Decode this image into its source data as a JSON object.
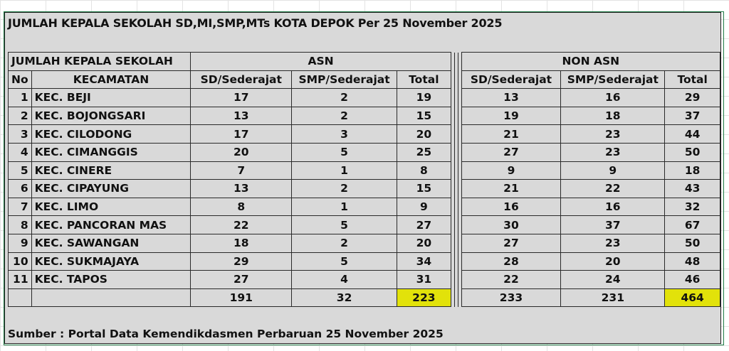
{
  "title": "JUMLAH KEPALA SEKOLAH SD,MI,SMP,MTs KOTA DEPOK Per 25 November 2025",
  "header": {
    "group_label": "JUMLAH KEPALA SEKOLAH",
    "asn_label": "ASN",
    "non_asn_label": "NON ASN",
    "no_label": "No",
    "kecamatan_label": "KECAMATAN",
    "sd_label": "SD/Sederajat",
    "smp_label": "SMP/Sederajat",
    "total_label": "Total"
  },
  "rows": [
    {
      "no": "1",
      "kecamatan": "KEC. BEJI",
      "asn_sd": "17",
      "asn_smp": "2",
      "asn_total": "19",
      "non_sd": "13",
      "non_smp": "16",
      "non_total": "29"
    },
    {
      "no": "2",
      "kecamatan": "KEC. BOJONGSARI",
      "asn_sd": "13",
      "asn_smp": "2",
      "asn_total": "15",
      "non_sd": "19",
      "non_smp": "18",
      "non_total": "37"
    },
    {
      "no": "3",
      "kecamatan": "KEC. CILODONG",
      "asn_sd": "17",
      "asn_smp": "3",
      "asn_total": "20",
      "non_sd": "21",
      "non_smp": "23",
      "non_total": "44"
    },
    {
      "no": "4",
      "kecamatan": "KEC. CIMANGGIS",
      "asn_sd": "20",
      "asn_smp": "5",
      "asn_total": "25",
      "non_sd": "27",
      "non_smp": "23",
      "non_total": "50"
    },
    {
      "no": "5",
      "kecamatan": "KEC. CINERE",
      "asn_sd": "7",
      "asn_smp": "1",
      "asn_total": "8",
      "non_sd": "9",
      "non_smp": "9",
      "non_total": "18"
    },
    {
      "no": "6",
      "kecamatan": "KEC. CIPAYUNG",
      "asn_sd": "13",
      "asn_smp": "2",
      "asn_total": "15",
      "non_sd": "21",
      "non_smp": "22",
      "non_total": "43"
    },
    {
      "no": "7",
      "kecamatan": "KEC. LIMO",
      "asn_sd": "8",
      "asn_smp": "1",
      "asn_total": "9",
      "non_sd": "16",
      "non_smp": "16",
      "non_total": "32"
    },
    {
      "no": "8",
      "kecamatan": "KEC. PANCORAN MAS",
      "asn_sd": "22",
      "asn_smp": "5",
      "asn_total": "27",
      "non_sd": "30",
      "non_smp": "37",
      "non_total": "67"
    },
    {
      "no": "9",
      "kecamatan": "KEC. SAWANGAN",
      "asn_sd": "18",
      "asn_smp": "2",
      "asn_total": "20",
      "non_sd": "27",
      "non_smp": "23",
      "non_total": "50"
    },
    {
      "no": "10",
      "kecamatan": "KEC. SUKMAJAYA",
      "asn_sd": "29",
      "asn_smp": "5",
      "asn_total": "34",
      "non_sd": "28",
      "non_smp": "20",
      "non_total": "48"
    },
    {
      "no": "11",
      "kecamatan": "KEC. TAPOS",
      "asn_sd": "27",
      "asn_smp": "4",
      "asn_total": "31",
      "non_sd": "22",
      "non_smp": "24",
      "non_total": "46"
    }
  ],
  "totals": {
    "asn_sd": "191",
    "asn_smp": "32",
    "asn_total": "223",
    "non_sd": "233",
    "non_smp": "231",
    "non_total": "464"
  },
  "source": "Sumber : Portal Data Kemendikdasmen Perbaruan 25 November 2025",
  "colors": {
    "sheet_bg": "#d9d9d9",
    "highlight": "#e2e20a",
    "selection_border": "#1e7b45"
  }
}
